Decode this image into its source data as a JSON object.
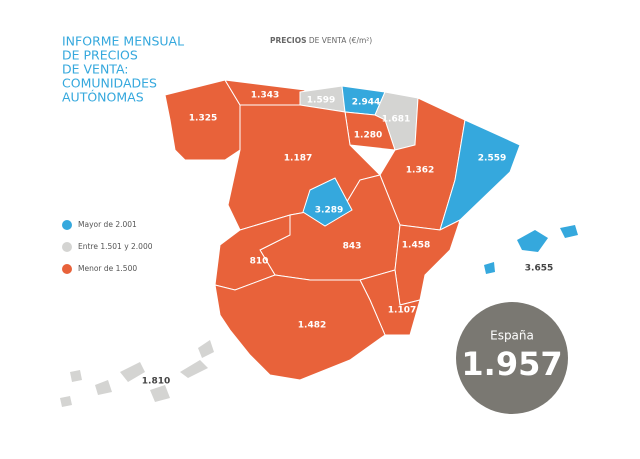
{
  "header": {
    "title_lines": [
      "INFORME MENSUAL",
      "DE PRECIOS",
      "DE VENTA:",
      "COMUNIDADES",
      "AUTÓNOMAS"
    ],
    "subtitle_bold": "PRECIOS",
    "subtitle_rest": "DE VENTA (€/m²)"
  },
  "legend": [
    {
      "label": "Mayor de 2.001",
      "color": "#35a8dd"
    },
    {
      "label": "Entre 1.501 y 2.000",
      "color": "#d4d4d2"
    },
    {
      "label": "Menor de 1.500",
      "color": "#e8623a"
    }
  ],
  "regions": [
    {
      "label": "1.325",
      "color": "#e8623a"
    },
    {
      "label": "1.343",
      "color": "#e8623a"
    },
    {
      "label": "1.599",
      "color": "#d4d4d2"
    },
    {
      "label": "2.944",
      "color": "#35a8dd"
    },
    {
      "label": "1.681",
      "color": "#d4d4d2"
    },
    {
      "label": "1.280",
      "color": "#e8623a"
    },
    {
      "label": "1.187",
      "color": "#e8623a"
    },
    {
      "label": "1.362",
      "color": "#e8623a"
    },
    {
      "label": "2.559",
      "color": "#35a8dd"
    },
    {
      "label": "3.289",
      "color": "#35a8dd"
    },
    {
      "label": "843",
      "color": "#e8623a"
    },
    {
      "label": "810",
      "color": "#e8623a"
    },
    {
      "label": "1.458",
      "color": "#e8623a"
    },
    {
      "label": "1.107",
      "color": "#e8623a"
    },
    {
      "label": "1.482",
      "color": "#e8623a"
    },
    {
      "label": "3.655",
      "color": "#35a8dd"
    },
    {
      "label": "1.810",
      "color": "#d4d4d2"
    }
  ],
  "summary": {
    "label": "España",
    "value": "1.957"
  }
}
